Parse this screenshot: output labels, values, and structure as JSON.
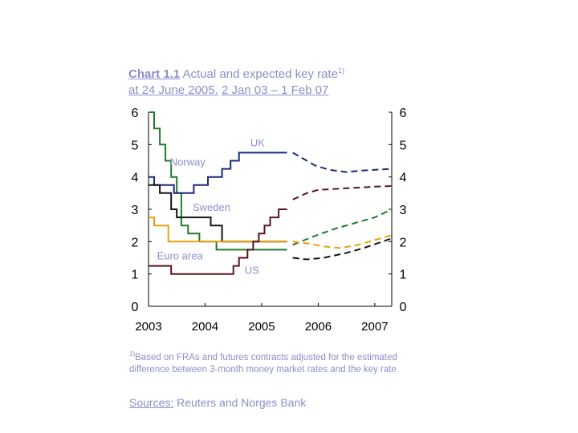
{
  "title": {
    "prefix": "Chart 1.1",
    "line1_rest": " Actual and expected key rate",
    "line1_sup": "1)",
    "line2_date": "at 24 June 2005.",
    "line2_range": "2 Jan 03 – 1 Feb 07"
  },
  "footnote": {
    "marker": "1)",
    "text": "Based on FRAs and futures contracts adjusted for the estimated difference between 3-month money market rates and the key rate"
  },
  "sources": {
    "label": "Sources:",
    "text": " Reuters and Norges Bank"
  },
  "chart_data": {
    "type": "line",
    "xlim": [
      2003.0,
      2007.3
    ],
    "ylim": [
      0,
      6
    ],
    "x_ticks": [
      "2003",
      "2004",
      "2005",
      "2006",
      "2007"
    ],
    "y_ticks": [
      "0",
      "1",
      "2",
      "3",
      "4",
      "5",
      "6"
    ],
    "grid": false,
    "series": [
      {
        "name": "Norway",
        "color": "#1f7a2a",
        "actual": [
          [
            2003.0,
            6.0
          ],
          [
            2003.1,
            6.0
          ],
          [
            2003.1,
            5.5
          ],
          [
            2003.2,
            5.5
          ],
          [
            2003.2,
            5.0
          ],
          [
            2003.3,
            5.0
          ],
          [
            2003.3,
            4.5
          ],
          [
            2003.4,
            4.5
          ],
          [
            2003.4,
            4.0
          ],
          [
            2003.5,
            4.0
          ],
          [
            2003.5,
            3.5
          ],
          [
            2003.58,
            3.5
          ],
          [
            2003.58,
            2.5
          ],
          [
            2003.7,
            2.5
          ],
          [
            2003.7,
            2.25
          ],
          [
            2003.9,
            2.25
          ],
          [
            2003.9,
            2.0
          ],
          [
            2004.2,
            2.0
          ],
          [
            2004.2,
            1.75
          ],
          [
            2005.45,
            1.75
          ]
        ],
        "expected": [
          [
            2005.55,
            1.9
          ],
          [
            2005.9,
            2.15
          ],
          [
            2006.3,
            2.4
          ],
          [
            2006.7,
            2.6
          ],
          [
            2007.0,
            2.75
          ],
          [
            2007.3,
            3.0
          ]
        ]
      },
      {
        "name": "UK",
        "color": "#1a2a7a",
        "actual": [
          [
            2003.0,
            4.0
          ],
          [
            2003.1,
            4.0
          ],
          [
            2003.1,
            3.75
          ],
          [
            2003.45,
            3.75
          ],
          [
            2003.45,
            3.5
          ],
          [
            2003.8,
            3.5
          ],
          [
            2003.8,
            3.75
          ],
          [
            2004.05,
            3.75
          ],
          [
            2004.05,
            4.0
          ],
          [
            2004.3,
            4.0
          ],
          [
            2004.3,
            4.25
          ],
          [
            2004.45,
            4.25
          ],
          [
            2004.45,
            4.5
          ],
          [
            2004.6,
            4.5
          ],
          [
            2004.6,
            4.75
          ],
          [
            2005.45,
            4.75
          ]
        ],
        "expected": [
          [
            2005.55,
            4.75
          ],
          [
            2005.75,
            4.55
          ],
          [
            2005.95,
            4.35
          ],
          [
            2006.2,
            4.22
          ],
          [
            2006.5,
            4.15
          ],
          [
            2006.8,
            4.2
          ],
          [
            2007.3,
            4.25
          ]
        ]
      },
      {
        "name": "Sweden",
        "color": "#141414",
        "actual": [
          [
            2003.0,
            3.75
          ],
          [
            2003.2,
            3.75
          ],
          [
            2003.2,
            3.5
          ],
          [
            2003.4,
            3.5
          ],
          [
            2003.4,
            3.0
          ],
          [
            2003.5,
            3.0
          ],
          [
            2003.5,
            2.75
          ],
          [
            2004.1,
            2.75
          ],
          [
            2004.1,
            2.5
          ],
          [
            2004.3,
            2.5
          ],
          [
            2004.3,
            2.0
          ],
          [
            2005.45,
            2.0
          ]
        ],
        "expected": [
          [
            2005.55,
            1.5
          ],
          [
            2005.8,
            1.45
          ],
          [
            2006.1,
            1.5
          ],
          [
            2006.5,
            1.65
          ],
          [
            2006.8,
            1.8
          ],
          [
            2007.3,
            2.1
          ]
        ]
      },
      {
        "name": "Euro area",
        "color": "#e8a010",
        "actual": [
          [
            2003.0,
            2.75
          ],
          [
            2003.1,
            2.75
          ],
          [
            2003.1,
            2.5
          ],
          [
            2003.35,
            2.5
          ],
          [
            2003.35,
            2.0
          ],
          [
            2005.45,
            2.0
          ]
        ],
        "expected": [
          [
            2005.55,
            2.0
          ],
          [
            2005.8,
            1.95
          ],
          [
            2006.1,
            1.85
          ],
          [
            2006.4,
            1.8
          ],
          [
            2006.7,
            1.9
          ],
          [
            2007.0,
            2.05
          ],
          [
            2007.3,
            2.2
          ]
        ]
      },
      {
        "name": "US",
        "color": "#5a1420",
        "actual": [
          [
            2003.0,
            1.25
          ],
          [
            2003.4,
            1.25
          ],
          [
            2003.4,
            1.0
          ],
          [
            2004.5,
            1.0
          ],
          [
            2004.5,
            1.25
          ],
          [
            2004.6,
            1.25
          ],
          [
            2004.6,
            1.5
          ],
          [
            2004.75,
            1.5
          ],
          [
            2004.75,
            1.75
          ],
          [
            2004.85,
            1.75
          ],
          [
            2004.85,
            2.0
          ],
          [
            2004.95,
            2.0
          ],
          [
            2004.95,
            2.25
          ],
          [
            2005.05,
            2.25
          ],
          [
            2005.05,
            2.5
          ],
          [
            2005.15,
            2.5
          ],
          [
            2005.15,
            2.75
          ],
          [
            2005.3,
            2.75
          ],
          [
            2005.3,
            3.0
          ],
          [
            2005.45,
            3.0
          ]
        ],
        "expected": [
          [
            2005.55,
            3.3
          ],
          [
            2005.8,
            3.5
          ],
          [
            2006.0,
            3.6
          ],
          [
            2006.5,
            3.65
          ],
          [
            2007.0,
            3.7
          ],
          [
            2007.3,
            3.72
          ]
        ]
      }
    ],
    "labels": [
      {
        "text": "UK",
        "x": 2004.8,
        "y": 4.95
      },
      {
        "text": "Norway",
        "x": 2003.38,
        "y": 4.35
      },
      {
        "text": "Sweden",
        "x": 2003.78,
        "y": 2.95
      },
      {
        "text": "Euro area",
        "x": 2003.15,
        "y": 1.45
      },
      {
        "text": "US",
        "x": 2004.7,
        "y": 1.0
      }
    ]
  }
}
